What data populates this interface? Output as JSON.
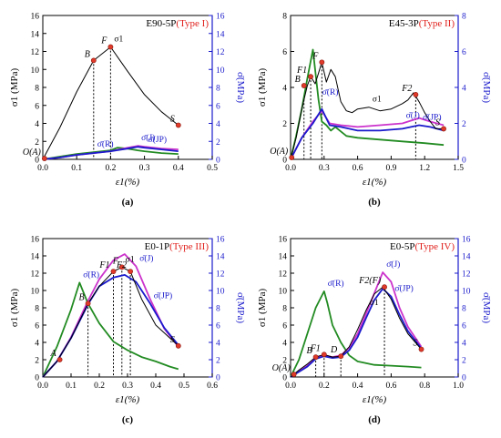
{
  "figure": {
    "primary_color": "#000000",
    "right_axis_color": "#1a1acc",
    "type_label_color": "#e0201c",
    "marker_color": "#e03a2a",
    "series_colors": {
      "sigma1": "#000000",
      "sigma_R": "#228b22",
      "sigma_J": "#cc33cc",
      "sigma_JP": "#1a1acc"
    }
  },
  "chart_data": [
    {
      "type": "line",
      "panel_label": "(a)",
      "title": "E90-5P",
      "type_label": "(Type I)",
      "xlabel": "ε1(%)",
      "ylabel": "σ1 (MPa)",
      "y2label": "σ̄(MPa)",
      "xlim": [
        0,
        0.5
      ],
      "ylim": [
        0,
        16
      ],
      "y2lim": [
        0,
        16
      ],
      "xticks": [
        "0.0",
        "0.1",
        "0.2",
        "0.3",
        "0.4",
        "0.5"
      ],
      "yticks": [
        "0",
        "2",
        "4",
        "6",
        "8",
        "10",
        "12",
        "14",
        "16"
      ],
      "y2ticks": [
        "0",
        "2",
        "4",
        "6",
        "8",
        "10",
        "12",
        "14",
        "16"
      ],
      "series": [
        {
          "key": "sigma1",
          "name": "σ1",
          "x": [
            0,
            0.05,
            0.1,
            0.15,
            0.2,
            0.25,
            0.3,
            0.35,
            0.4
          ],
          "y": [
            0,
            3.5,
            7.5,
            11,
            12.5,
            9.8,
            7.2,
            5.3,
            3.8
          ]
        },
        {
          "key": "sigma_R",
          "name": "σ̄(R)",
          "x": [
            0,
            0.05,
            0.1,
            0.15,
            0.2,
            0.22,
            0.25,
            0.28,
            0.3,
            0.35,
            0.4
          ],
          "y": [
            0,
            0.3,
            0.6,
            0.8,
            1.0,
            1.3,
            1.2,
            1.0,
            0.9,
            0.7,
            0.6
          ]
        },
        {
          "key": "sigma_J",
          "name": "σ̄(J)",
          "x": [
            0,
            0.05,
            0.1,
            0.15,
            0.2,
            0.25,
            0.28,
            0.3,
            0.35,
            0.4
          ],
          "y": [
            0,
            0.2,
            0.5,
            0.7,
            0.9,
            1.3,
            1.5,
            1.4,
            1.2,
            1.1
          ]
        },
        {
          "key": "sigma_JP",
          "name": "σ̄(JP)",
          "x": [
            0,
            0.05,
            0.1,
            0.15,
            0.2,
            0.25,
            0.28,
            0.3,
            0.35,
            0.4
          ],
          "y": [
            0,
            0.2,
            0.5,
            0.7,
            0.9,
            1.2,
            1.4,
            1.3,
            1.1,
            0.9
          ]
        }
      ],
      "points": [
        {
          "label": "O(A)",
          "x": 0.005,
          "y": 0.1
        },
        {
          "label": "B",
          "x": 0.15,
          "y": 11
        },
        {
          "label": "F",
          "x": 0.2,
          "y": 12.5
        },
        {
          "label": "S",
          "x": 0.4,
          "y": 3.8
        }
      ],
      "vlines": [
        0.15,
        0.2
      ]
    },
    {
      "type": "line",
      "panel_label": "(b)",
      "title": "E45-3P",
      "type_label": "(Type II)",
      "xlabel": "ε1(%)",
      "ylabel": "σ1 (MPa)",
      "y2label": "σ̄(MPa)",
      "xlim": [
        0,
        1.5
      ],
      "ylim": [
        0,
        8
      ],
      "y2lim": [
        0,
        8
      ],
      "xticks": [
        "0.0",
        "0.3",
        "0.6",
        "0.9",
        "1.2",
        "1.5"
      ],
      "yticks": [
        "0",
        "2",
        "4",
        "6",
        "8"
      ],
      "y2ticks": [
        "0",
        "2",
        "4",
        "6",
        "8"
      ],
      "series": [
        {
          "key": "sigma1",
          "name": "σ1",
          "x": [
            0,
            0.05,
            0.1,
            0.15,
            0.18,
            0.22,
            0.25,
            0.28,
            0.32,
            0.36,
            0.4,
            0.45,
            0.5,
            0.55,
            0.6,
            0.7,
            0.8,
            0.9,
            1.0,
            1.05,
            1.1,
            1.15,
            1.2,
            1.25,
            1.3,
            1.37
          ],
          "y": [
            0,
            1.2,
            2.8,
            4.1,
            4.6,
            4.2,
            4.8,
            5.4,
            4.3,
            5.0,
            4.6,
            3.2,
            2.7,
            2.6,
            2.8,
            2.9,
            2.7,
            2.8,
            3.1,
            3.3,
            3.7,
            3.2,
            2.6,
            2.1,
            1.7,
            1.7
          ]
        },
        {
          "key": "sigma_R",
          "name": "σ̄(R)",
          "x": [
            0,
            0.05,
            0.1,
            0.15,
            0.2,
            0.25,
            0.28,
            0.32,
            0.36,
            0.4,
            0.5,
            0.6,
            0.8,
            1.0,
            1.2,
            1.37
          ],
          "y": [
            0,
            1.3,
            2.8,
            4.5,
            6.1,
            3.3,
            2.1,
            1.9,
            1.6,
            1.8,
            1.3,
            1.2,
            1.1,
            1.0,
            0.9,
            0.8
          ]
        },
        {
          "key": "sigma_J",
          "name": "σ̄(J)",
          "x": [
            0,
            0.1,
            0.2,
            0.28,
            0.35,
            0.45,
            0.6,
            0.8,
            1.0,
            1.15,
            1.25,
            1.37
          ],
          "y": [
            0,
            1.2,
            2.1,
            2.7,
            2.0,
            1.9,
            1.8,
            1.9,
            2.0,
            2.3,
            2.1,
            1.9
          ]
        },
        {
          "key": "sigma_JP",
          "name": "σ̄(JP)",
          "x": [
            0,
            0.1,
            0.2,
            0.28,
            0.35,
            0.45,
            0.6,
            0.8,
            1.0,
            1.15,
            1.25,
            1.37
          ],
          "y": [
            0,
            1.2,
            2.0,
            2.8,
            1.9,
            1.8,
            1.6,
            1.6,
            1.7,
            1.9,
            1.8,
            1.6
          ]
        }
      ],
      "points": [
        {
          "label": "O(A)",
          "x": 0.01,
          "y": 0.1
        },
        {
          "label": "B",
          "x": 0.12,
          "y": 4.1
        },
        {
          "label": "F1",
          "x": 0.18,
          "y": 4.6
        },
        {
          "label": "F",
          "x": 0.28,
          "y": 5.4
        },
        {
          "label": "F2",
          "x": 1.12,
          "y": 3.6
        },
        {
          "label": "S",
          "x": 1.37,
          "y": 1.7
        }
      ],
      "vlines": [
        0.12,
        0.18,
        0.28,
        1.12
      ]
    },
    {
      "type": "line",
      "panel_label": "(c)",
      "title": "E0-1P",
      "type_label": "(Type III)",
      "xlabel": "ε1(%)",
      "ylabel": "σ1 (MPa)",
      "y2label": "σ̄(MPa)",
      "xlim": [
        0,
        0.6
      ],
      "ylim": [
        0,
        16
      ],
      "y2lim": [
        0,
        16
      ],
      "xticks": [
        "0.0",
        "0.1",
        "0.2",
        "0.3",
        "0.4",
        "0.5",
        "0.6"
      ],
      "yticks": [
        "0",
        "2",
        "4",
        "6",
        "8",
        "10",
        "12",
        "14",
        "16"
      ],
      "y2ticks": [
        "0",
        "2",
        "4",
        "6",
        "8",
        "10",
        "12",
        "14",
        "16"
      ],
      "series": [
        {
          "key": "sigma1",
          "name": "σ1",
          "x": [
            0,
            0.05,
            0.1,
            0.16,
            0.2,
            0.25,
            0.28,
            0.31,
            0.35,
            0.4,
            0.48
          ],
          "y": [
            0,
            1.8,
            4.5,
            8.5,
            10.5,
            12.2,
            12.7,
            12.2,
            9.0,
            6.0,
            3.6
          ]
        },
        {
          "key": "sigma_R",
          "name": "σ̄(R)",
          "x": [
            0,
            0.05,
            0.1,
            0.13,
            0.16,
            0.2,
            0.25,
            0.3,
            0.35,
            0.4,
            0.45,
            0.48
          ],
          "y": [
            0,
            3.5,
            7.8,
            10.9,
            8.5,
            6.2,
            4.1,
            3.1,
            2.3,
            1.8,
            1.2,
            0.9
          ]
        },
        {
          "key": "sigma_J",
          "name": "σ̄(J)",
          "x": [
            0,
            0.05,
            0.1,
            0.16,
            0.2,
            0.25,
            0.29,
            0.33,
            0.38,
            0.43,
            0.48
          ],
          "y": [
            0,
            1.8,
            4.6,
            8.8,
            11.3,
            13.5,
            14.2,
            12.8,
            9.0,
            5.6,
            3.5
          ]
        },
        {
          "key": "sigma_JP",
          "name": "σ̄(JP)",
          "x": [
            0,
            0.05,
            0.1,
            0.16,
            0.2,
            0.25,
            0.29,
            0.33,
            0.38,
            0.43,
            0.48
          ],
          "y": [
            0,
            1.8,
            4.5,
            8.4,
            10.5,
            11.5,
            11.8,
            11.0,
            8.5,
            5.7,
            3.7
          ]
        }
      ],
      "points": [
        {
          "label": "A",
          "x": 0.06,
          "y": 2.0
        },
        {
          "label": "B",
          "x": 0.16,
          "y": 8.5
        },
        {
          "label": "F1",
          "x": 0.25,
          "y": 12.2
        },
        {
          "label": "F",
          "x": 0.28,
          "y": 12.7
        },
        {
          "label": "F2",
          "x": 0.31,
          "y": 12.2
        },
        {
          "label": "S",
          "x": 0.48,
          "y": 3.6
        }
      ],
      "vlines": [
        0.16,
        0.25,
        0.28,
        0.31
      ]
    },
    {
      "type": "line",
      "panel_label": "(d)",
      "title": "E0-5P",
      "type_label": "(Type IV)",
      "xlabel": "ε1(%)",
      "ylabel": "σ1 (MPa)",
      "y2label": "σ̄(MPa)",
      "xlim": [
        0,
        1.0
      ],
      "ylim": [
        0,
        16
      ],
      "y2lim": [
        0,
        16
      ],
      "xticks": [
        "0.0",
        "0.2",
        "0.4",
        "0.6",
        "0.8",
        "1.0"
      ],
      "yticks": [
        "0",
        "2",
        "4",
        "6",
        "8",
        "10",
        "12",
        "14",
        "16"
      ],
      "y2ticks": [
        "0",
        "2",
        "4",
        "6",
        "8",
        "10",
        "12",
        "14",
        "16"
      ],
      "series": [
        {
          "key": "sigma1",
          "name": "σ1",
          "x": [
            0,
            0.05,
            0.1,
            0.15,
            0.2,
            0.25,
            0.3,
            0.35,
            0.4,
            0.45,
            0.5,
            0.55,
            0.6,
            0.65,
            0.7,
            0.78
          ],
          "y": [
            0,
            0.8,
            1.5,
            2.3,
            2.6,
            2.3,
            2.4,
            3.5,
            5.5,
            7.7,
            9.6,
            10.4,
            9.0,
            6.8,
            5.0,
            3.2
          ]
        },
        {
          "key": "sigma_R",
          "name": "σ̄(R)",
          "x": [
            0,
            0.05,
            0.1,
            0.15,
            0.2,
            0.22,
            0.25,
            0.3,
            0.35,
            0.4,
            0.5,
            0.6,
            0.7,
            0.78
          ],
          "y": [
            0,
            2.0,
            5.0,
            8.0,
            9.9,
            8.5,
            6.0,
            4.0,
            2.5,
            1.8,
            1.4,
            1.3,
            1.2,
            1.1
          ]
        },
        {
          "key": "sigma_J",
          "name": "σ̄(J)",
          "x": [
            0,
            0.1,
            0.15,
            0.2,
            0.25,
            0.3,
            0.35,
            0.4,
            0.45,
            0.5,
            0.55,
            0.6,
            0.65,
            0.7,
            0.78
          ],
          "y": [
            0,
            1.3,
            2.3,
            2.5,
            2.3,
            2.5,
            3.4,
            5.0,
            7.3,
            9.7,
            12.1,
            11.0,
            8.0,
            5.8,
            3.5
          ]
        },
        {
          "key": "sigma_JP",
          "name": "σ̄(JP)",
          "x": [
            0,
            0.1,
            0.15,
            0.2,
            0.25,
            0.3,
            0.35,
            0.4,
            0.45,
            0.5,
            0.55,
            0.6,
            0.65,
            0.7,
            0.78
          ],
          "y": [
            0,
            1.2,
            2.1,
            2.4,
            2.2,
            2.3,
            3.1,
            4.6,
            6.8,
            8.9,
            10.2,
            9.3,
            7.2,
            5.3,
            3.3
          ]
        }
      ],
      "points": [
        {
          "label": "O(A)",
          "x": 0.02,
          "y": 0.3
        },
        {
          "label": "B",
          "x": 0.15,
          "y": 2.3
        },
        {
          "label": "F1",
          "x": 0.2,
          "y": 2.6
        },
        {
          "label": "D",
          "x": 0.3,
          "y": 2.4
        },
        {
          "label": "F2(F)",
          "x": 0.56,
          "y": 10.4
        },
        {
          "label": "S",
          "x": 0.78,
          "y": 3.2
        }
      ],
      "vlines": [
        0.15,
        0.2,
        0.3,
        0.56
      ]
    }
  ]
}
